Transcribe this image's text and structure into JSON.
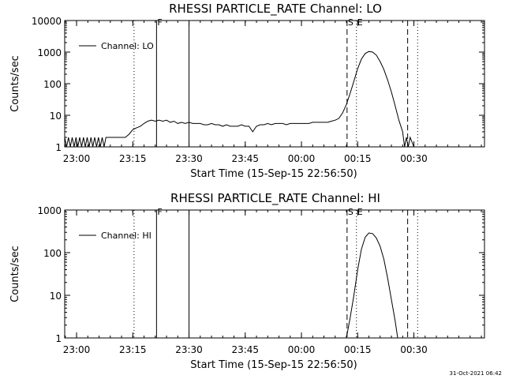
{
  "footer": {
    "timestamp": "31-Oct-2021 06:42"
  },
  "colors": {
    "axis": "#000000",
    "background": "#ffffff"
  },
  "chart_data": [
    {
      "type": "line",
      "title": "RHESSI PARTICLE_RATE Channel: LO",
      "xlabel": "Start Time (15-Sep-15 22:56:50)",
      "ylabel": "Counts/sec",
      "yscale": "log",
      "xlim": [
        "22:56:50",
        "00:36:00"
      ],
      "ylim": [
        1,
        10000
      ],
      "x_ticks": [
        "23:00",
        "23:15",
        "23:30",
        "23:45",
        "00:00",
        "00:15",
        "00:30"
      ],
      "y_ticks": [
        "1",
        "10",
        "100",
        "1000",
        "10000"
      ],
      "legend": {
        "position": "top-left",
        "entries": [
          "Channel: LO"
        ]
      },
      "grid": false,
      "markers": [
        {
          "time": "23:15:20",
          "style": "dotted",
          "label": ""
        },
        {
          "time": "23:21:20",
          "style": "solid",
          "label": "F"
        },
        {
          "time": "23:30:00",
          "style": "solid",
          "label": ""
        },
        {
          "time": "00:12:10",
          "style": "dashed",
          "label": "S"
        },
        {
          "time": "00:14:40",
          "style": "dotted",
          "label": "E"
        },
        {
          "time": "00:28:20",
          "style": "dashed",
          "label": ""
        },
        {
          "time": "00:31:00",
          "style": "dotted",
          "label": ""
        }
      ],
      "series": [
        {
          "name": "Channel: LO",
          "points": [
            [
              "22:56:50",
              2
            ],
            [
              "22:57:20",
              1
            ],
            [
              "22:57:50",
              2
            ],
            [
              "22:58:20",
              1
            ],
            [
              "22:58:50",
              2
            ],
            [
              "22:59:20",
              1
            ],
            [
              "22:59:50",
              2
            ],
            [
              "23:00:20",
              1
            ],
            [
              "23:00:50",
              2
            ],
            [
              "23:01:20",
              1
            ],
            [
              "23:01:50",
              2
            ],
            [
              "23:02:20",
              1
            ],
            [
              "23:02:50",
              2
            ],
            [
              "23:03:20",
              1
            ],
            [
              "23:03:50",
              2
            ],
            [
              "23:04:20",
              1
            ],
            [
              "23:04:50",
              2
            ],
            [
              "23:05:20",
              1
            ],
            [
              "23:05:50",
              2
            ],
            [
              "23:06:20",
              1
            ],
            [
              "23:06:50",
              2
            ],
            [
              "23:07:20",
              1
            ],
            [
              "23:07:50",
              2
            ],
            [
              "23:08:20",
              2
            ],
            [
              "23:09:00",
              2
            ],
            [
              "23:10:00",
              2
            ],
            [
              "23:11:00",
              2
            ],
            [
              "23:12:00",
              2
            ],
            [
              "23:13:00",
              2
            ],
            [
              "23:14:00",
              2.5
            ],
            [
              "23:15:00",
              3.5
            ],
            [
              "23:16:00",
              4
            ],
            [
              "23:17:00",
              4.5
            ],
            [
              "23:18:00",
              5.5
            ],
            [
              "23:19:00",
              6.5
            ],
            [
              "23:20:00",
              7
            ],
            [
              "23:21:00",
              6.5
            ],
            [
              "23:22:00",
              7
            ],
            [
              "23:23:00",
              6.5
            ],
            [
              "23:24:00",
              7
            ],
            [
              "23:25:00",
              6
            ],
            [
              "23:26:00",
              6.5
            ],
            [
              "23:27:00",
              5.5
            ],
            [
              "23:28:00",
              6
            ],
            [
              "23:29:00",
              5.5
            ],
            [
              "23:30:00",
              6
            ],
            [
              "23:31:00",
              5.5
            ],
            [
              "23:32:00",
              5.5
            ],
            [
              "23:33:00",
              5.5
            ],
            [
              "23:34:00",
              5
            ],
            [
              "23:35:00",
              5
            ],
            [
              "23:36:00",
              5.5
            ],
            [
              "23:37:00",
              5
            ],
            [
              "23:38:00",
              5
            ],
            [
              "23:39:00",
              4.5
            ],
            [
              "23:40:00",
              5
            ],
            [
              "23:41:00",
              4.5
            ],
            [
              "23:42:00",
              4.5
            ],
            [
              "23:43:00",
              4.5
            ],
            [
              "23:44:00",
              5
            ],
            [
              "23:45:00",
              4.5
            ],
            [
              "23:46:00",
              4.5
            ],
            [
              "23:47:00",
              3
            ],
            [
              "23:48:00",
              4.5
            ],
            [
              "23:49:00",
              5
            ],
            [
              "23:50:00",
              5
            ],
            [
              "23:51:00",
              5.5
            ],
            [
              "23:52:00",
              5
            ],
            [
              "23:53:00",
              5.5
            ],
            [
              "23:54:00",
              5.5
            ],
            [
              "23:55:00",
              5.5
            ],
            [
              "23:56:00",
              5
            ],
            [
              "23:57:00",
              5.5
            ],
            [
              "23:58:00",
              5.5
            ],
            [
              "23:59:00",
              5.5
            ],
            [
              "00:00:00",
              5.5
            ],
            [
              "00:01:00",
              5.5
            ],
            [
              "00:02:00",
              5.5
            ],
            [
              "00:03:00",
              6
            ],
            [
              "00:04:00",
              6
            ],
            [
              "00:05:00",
              6
            ],
            [
              "00:06:00",
              6
            ],
            [
              "00:07:00",
              6
            ],
            [
              "00:08:00",
              6.5
            ],
            [
              "00:09:00",
              7
            ],
            [
              "00:10:00",
              8
            ],
            [
              "00:11:00",
              12
            ],
            [
              "00:12:00",
              22
            ],
            [
              "00:13:00",
              50
            ],
            [
              "00:14:00",
              120
            ],
            [
              "00:15:00",
              300
            ],
            [
              "00:16:00",
              600
            ],
            [
              "00:17:00",
              900
            ],
            [
              "00:18:00",
              1050
            ],
            [
              "00:19:00",
              1000
            ],
            [
              "00:20:00",
              800
            ],
            [
              "00:21:00",
              500
            ],
            [
              "00:22:00",
              280
            ],
            [
              "00:23:00",
              130
            ],
            [
              "00:24:00",
              55
            ],
            [
              "00:25:00",
              20
            ],
            [
              "00:26:00",
              7
            ],
            [
              "00:27:00",
              3
            ],
            [
              "00:27:30",
              1
            ],
            [
              "00:28:00",
              2
            ],
            [
              "00:28:30",
              1
            ],
            [
              "00:29:00",
              2
            ],
            [
              "00:30:00",
              1
            ]
          ]
        }
      ]
    },
    {
      "type": "line",
      "title": "RHESSI PARTICLE_RATE Channel: HI",
      "xlabel": "Start Time (15-Sep-15 22:56:50)",
      "ylabel": "Counts/sec",
      "yscale": "log",
      "xlim": [
        "22:56:50",
        "00:36:00"
      ],
      "ylim": [
        1,
        1000
      ],
      "x_ticks": [
        "23:00",
        "23:15",
        "23:30",
        "23:45",
        "00:00",
        "00:15",
        "00:30"
      ],
      "y_ticks": [
        "1",
        "10",
        "100",
        "1000"
      ],
      "legend": {
        "position": "top-left",
        "entries": [
          "Channel: HI"
        ]
      },
      "grid": false,
      "markers": [
        {
          "time": "23:15:20",
          "style": "dotted",
          "label": ""
        },
        {
          "time": "23:21:20",
          "style": "solid",
          "label": "F"
        },
        {
          "time": "23:30:00",
          "style": "solid",
          "label": ""
        },
        {
          "time": "00:12:10",
          "style": "dashed",
          "label": "S"
        },
        {
          "time": "00:14:40",
          "style": "dotted",
          "label": "E"
        },
        {
          "time": "00:28:20",
          "style": "dashed",
          "label": ""
        },
        {
          "time": "00:31:00",
          "style": "dotted",
          "label": ""
        }
      ],
      "series": [
        {
          "name": "Channel: HI",
          "points": [
            [
              "00:12:00",
              1
            ],
            [
              "00:13:00",
              3
            ],
            [
              "00:14:00",
              10
            ],
            [
              "00:15:00",
              40
            ],
            [
              "00:16:00",
              120
            ],
            [
              "00:17:00",
              230
            ],
            [
              "00:18:00",
              290
            ],
            [
              "00:19:00",
              280
            ],
            [
              "00:20:00",
              220
            ],
            [
              "00:21:00",
              140
            ],
            [
              "00:22:00",
              70
            ],
            [
              "00:23:00",
              25
            ],
            [
              "00:24:00",
              8
            ],
            [
              "00:25:00",
              2.5
            ],
            [
              "00:25:40",
              1
            ]
          ]
        }
      ]
    }
  ]
}
